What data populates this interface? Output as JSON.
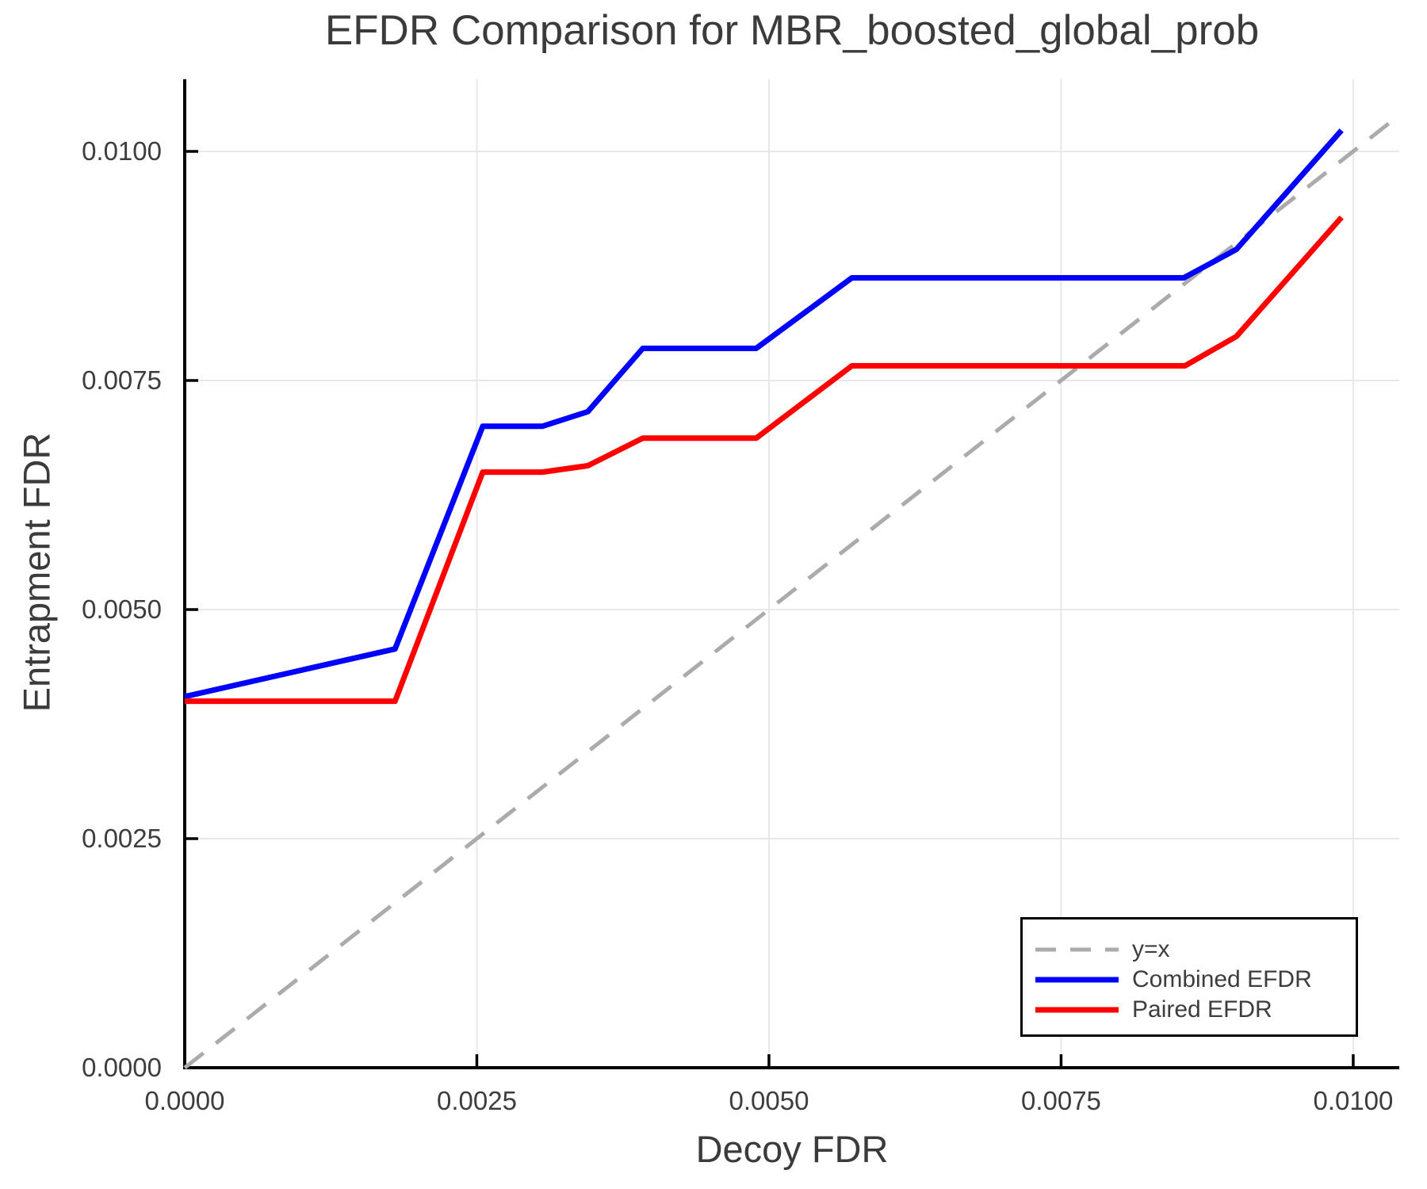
{
  "chart_data": {
    "type": "line",
    "title": "EFDR Comparison for MBR_boosted_global_prob",
    "xlabel": "Decoy FDR",
    "ylabel": "Entrapment FDR",
    "xlim": [
      0,
      0.010394
    ],
    "ylim": [
      0,
      0.010787
    ],
    "grid": true,
    "legend_position": "bottom-right",
    "x_ticks": {
      "values": [
        0,
        0.0025,
        0.005,
        0.0075,
        0.01
      ],
      "labels": [
        "0.0000",
        "0.0025",
        "0.0050",
        "0.0075",
        "0.0100"
      ]
    },
    "y_ticks": {
      "values": [
        0,
        0.0025,
        0.005,
        0.0075,
        0.01
      ],
      "labels": [
        "0.0000",
        "0.0025",
        "0.0050",
        "0.0075",
        "0.0100"
      ]
    },
    "series": [
      {
        "name": "y=x",
        "color": "#ababab",
        "style": "dashed",
        "width": 5,
        "points": [
          [
            0,
            0
          ],
          [
            0.010394,
            0.010394
          ]
        ]
      },
      {
        "name": "Combined EFDR",
        "color": "#0000ff",
        "style": "solid",
        "width": 7,
        "points": [
          [
            0.0,
            0.00405
          ],
          [
            0.0018,
            0.00457
          ],
          [
            0.00255,
            0.007
          ],
          [
            0.00306,
            0.007
          ],
          [
            0.00345,
            0.00716
          ],
          [
            0.00392,
            0.00785
          ],
          [
            0.00489,
            0.00785
          ],
          [
            0.00571,
            0.00862
          ],
          [
            0.00855,
            0.00862
          ],
          [
            0.009,
            0.00893
          ],
          [
            0.0099,
            0.01023
          ]
        ]
      },
      {
        "name": "Paired EFDR",
        "color": "#ff0000",
        "style": "solid",
        "width": 7,
        "points": [
          [
            0.0,
            0.004
          ],
          [
            0.0018,
            0.004
          ],
          [
            0.00255,
            0.0065
          ],
          [
            0.00306,
            0.0065
          ],
          [
            0.00345,
            0.00657
          ],
          [
            0.00392,
            0.00687
          ],
          [
            0.00489,
            0.00687
          ],
          [
            0.00571,
            0.00766
          ],
          [
            0.00856,
            0.00766
          ],
          [
            0.009,
            0.00798
          ],
          [
            0.0099,
            0.00928
          ]
        ]
      }
    ],
    "colors": {
      "grid": "#e8e8e8",
      "spine": "#000000",
      "tick": "#000000",
      "tick_label": "#3d3d3d",
      "text": "#3b3b3b",
      "background": "#ffffff"
    }
  }
}
